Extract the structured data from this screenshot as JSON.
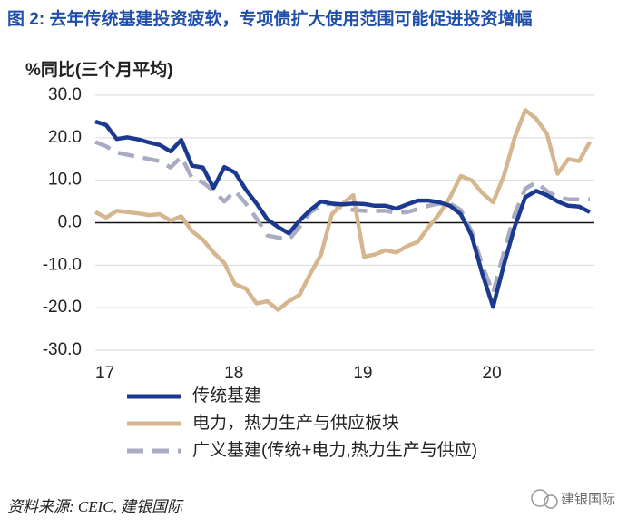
{
  "chart_data": {
    "type": "line",
    "title": "图 2: 去年传统基建投资疲软，专项债扩大使用范围可能促进投资增幅",
    "y_label": "%同比(三个月平均)",
    "categories": [
      "17",
      null,
      null,
      null,
      null,
      null,
      null,
      null,
      null,
      null,
      null,
      null,
      "18",
      null,
      null,
      null,
      null,
      null,
      null,
      null,
      null,
      null,
      null,
      null,
      "19",
      null,
      null,
      null,
      null,
      null,
      null,
      null,
      null,
      null,
      null,
      null,
      "20",
      null,
      null,
      null,
      null,
      null,
      null,
      null,
      null,
      null,
      null
    ],
    "series": [
      {
        "name": "传统基建",
        "color": "#1b3a8f",
        "dash": false,
        "values": [
          23.8,
          23,
          19.7,
          20.1,
          19.6,
          18.9,
          18.3,
          16.8,
          19.5,
          13.4,
          13,
          8.2,
          13.1,
          11.8,
          7.8,
          4.5,
          0.8,
          -1,
          -2.5,
          0.5,
          3,
          5,
          4.5,
          4.3,
          4.5,
          4.4,
          4,
          4,
          3.3,
          4.3,
          5.2,
          5.2,
          4.8,
          4,
          2,
          -3,
          -12,
          -19.8,
          -10,
          -1,
          6,
          7.5,
          6.5,
          5,
          4,
          3.8,
          2.5
        ]
      },
      {
        "name": "电力，热力生产与供应板块",
        "color": "#d5b68f",
        "dash": false,
        "values": [
          2.5,
          1.2,
          2.8,
          2.5,
          2.2,
          1.8,
          2,
          0.5,
          1.5,
          -2,
          -4,
          -7,
          -9.5,
          -14.5,
          -15.5,
          -19,
          -18.5,
          -20.5,
          -18.5,
          -17,
          -12,
          -7.5,
          2,
          4.5,
          6.5,
          -8,
          -7.5,
          -6.5,
          -7,
          -5.5,
          -4.5,
          -1,
          2,
          6,
          11,
          10,
          7,
          4.8,
          11,
          20,
          26.5,
          24.5,
          21,
          11.5,
          15,
          14.5,
          19
        ]
      },
      {
        "name": "广义基建(传统+电力,热力生产与供应)",
        "color": "#a8abc2",
        "dash": true,
        "values": [
          19,
          18,
          16.5,
          16,
          15.5,
          15,
          14.5,
          13,
          15.5,
          10.5,
          9.5,
          7.5,
          5,
          7.5,
          4.5,
          1,
          -3,
          -3.5,
          -4,
          -1,
          2.5,
          4,
          4.5,
          3.5,
          3,
          2.8,
          2.8,
          2.8,
          2.3,
          2.5,
          3.2,
          4,
          4.5,
          4.5,
          3,
          -2,
          -10,
          -16.5,
          -7,
          2,
          8,
          9.5,
          7.5,
          6,
          5.5,
          5.5,
          5.5
        ]
      }
    ],
    "ylim": [
      -30,
      30
    ],
    "yticks": [
      {
        "value": 30,
        "label": "30.0"
      },
      {
        "value": 20,
        "label": "20.0"
      },
      {
        "value": 10,
        "label": "10.0"
      },
      {
        "value": 0,
        "label": "0.0"
      },
      {
        "value": -10,
        "label": "-10.0"
      },
      {
        "value": -20,
        "label": "-20.0"
      },
      {
        "value": -30,
        "label": "-30.0"
      }
    ],
    "grid": true
  },
  "source": "资料来源: CEIC, 建银国际",
  "watermark": "建银国际"
}
